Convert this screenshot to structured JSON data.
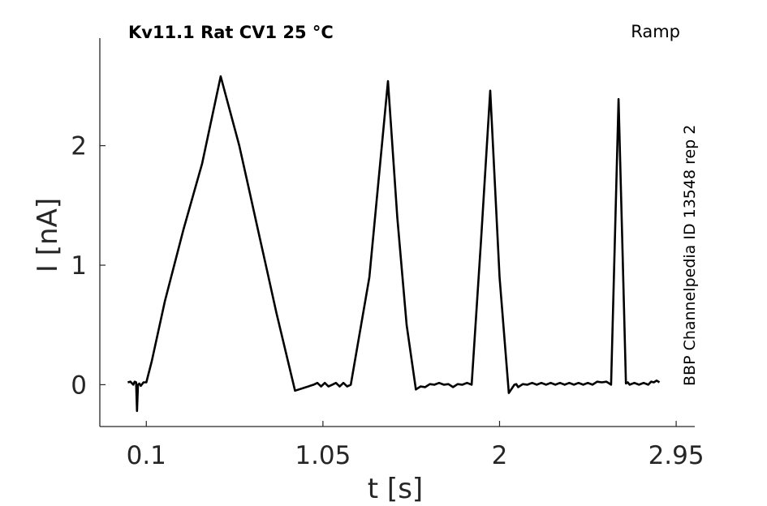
{
  "chart_data": {
    "type": "line",
    "title": "Kv11.1  Rat  CV1  25 °C",
    "protocol_label": "Ramp",
    "source_label": "BBP Channelpedia ID 13548 rep 2",
    "xlabel": "t [s]",
    "ylabel": "I [nA]",
    "xlim": [
      -0.15,
      3.05
    ],
    "ylim": [
      -0.35,
      2.9
    ],
    "x_ticks": [
      0.1,
      1.05,
      2,
      2.95
    ],
    "x_tick_labels": [
      "0.1",
      "1.05",
      "2",
      "2.95"
    ],
    "y_ticks": [
      0,
      1,
      2
    ],
    "y_tick_labels": [
      "0",
      "1",
      "2"
    ],
    "grid": false,
    "line_color": "#000000",
    "series": [
      {
        "x": [
          0.0,
          0.03,
          0.045,
          0.05,
          0.055,
          0.07,
          0.1,
          0.13,
          0.2,
          0.3,
          0.4,
          0.5,
          0.6,
          0.65,
          0.7,
          0.75,
          0.8,
          0.9,
          1.0,
          1.1,
          1.2,
          1.3,
          1.4,
          1.45,
          1.5,
          1.55,
          1.6,
          1.65,
          1.7,
          1.75,
          1.8,
          1.85,
          1.9,
          1.95,
          2.0,
          2.05,
          2.08,
          2.1,
          2.15,
          2.2,
          2.25,
          2.3,
          2.35,
          2.4,
          2.45,
          2.5,
          2.55,
          2.6,
          2.64,
          2.66,
          2.68,
          2.7,
          2.75,
          2.8,
          2.83,
          2.86
        ],
        "y": [
          0.02,
          0.0,
          0.02,
          -0.22,
          0.0,
          -0.01,
          0.02,
          0.2,
          0.7,
          1.3,
          1.85,
          2.58,
          2.0,
          1.65,
          1.3,
          0.95,
          0.6,
          -0.05,
          0.0,
          0.0,
          0.0,
          0.9,
          2.54,
          1.4,
          0.5,
          -0.04,
          -0.02,
          0.0,
          0.0,
          -0.02,
          0.0,
          0.0,
          1.2,
          2.46,
          0.9,
          -0.07,
          0.0,
          -0.02,
          0.0,
          0.0,
          0.0,
          0.0,
          0.0,
          0.0,
          0.0,
          0.0,
          0.02,
          0.0,
          2.39,
          1.2,
          0.01,
          0.0,
          0.0,
          0.0,
          0.02,
          0.02
        ]
      }
    ]
  }
}
